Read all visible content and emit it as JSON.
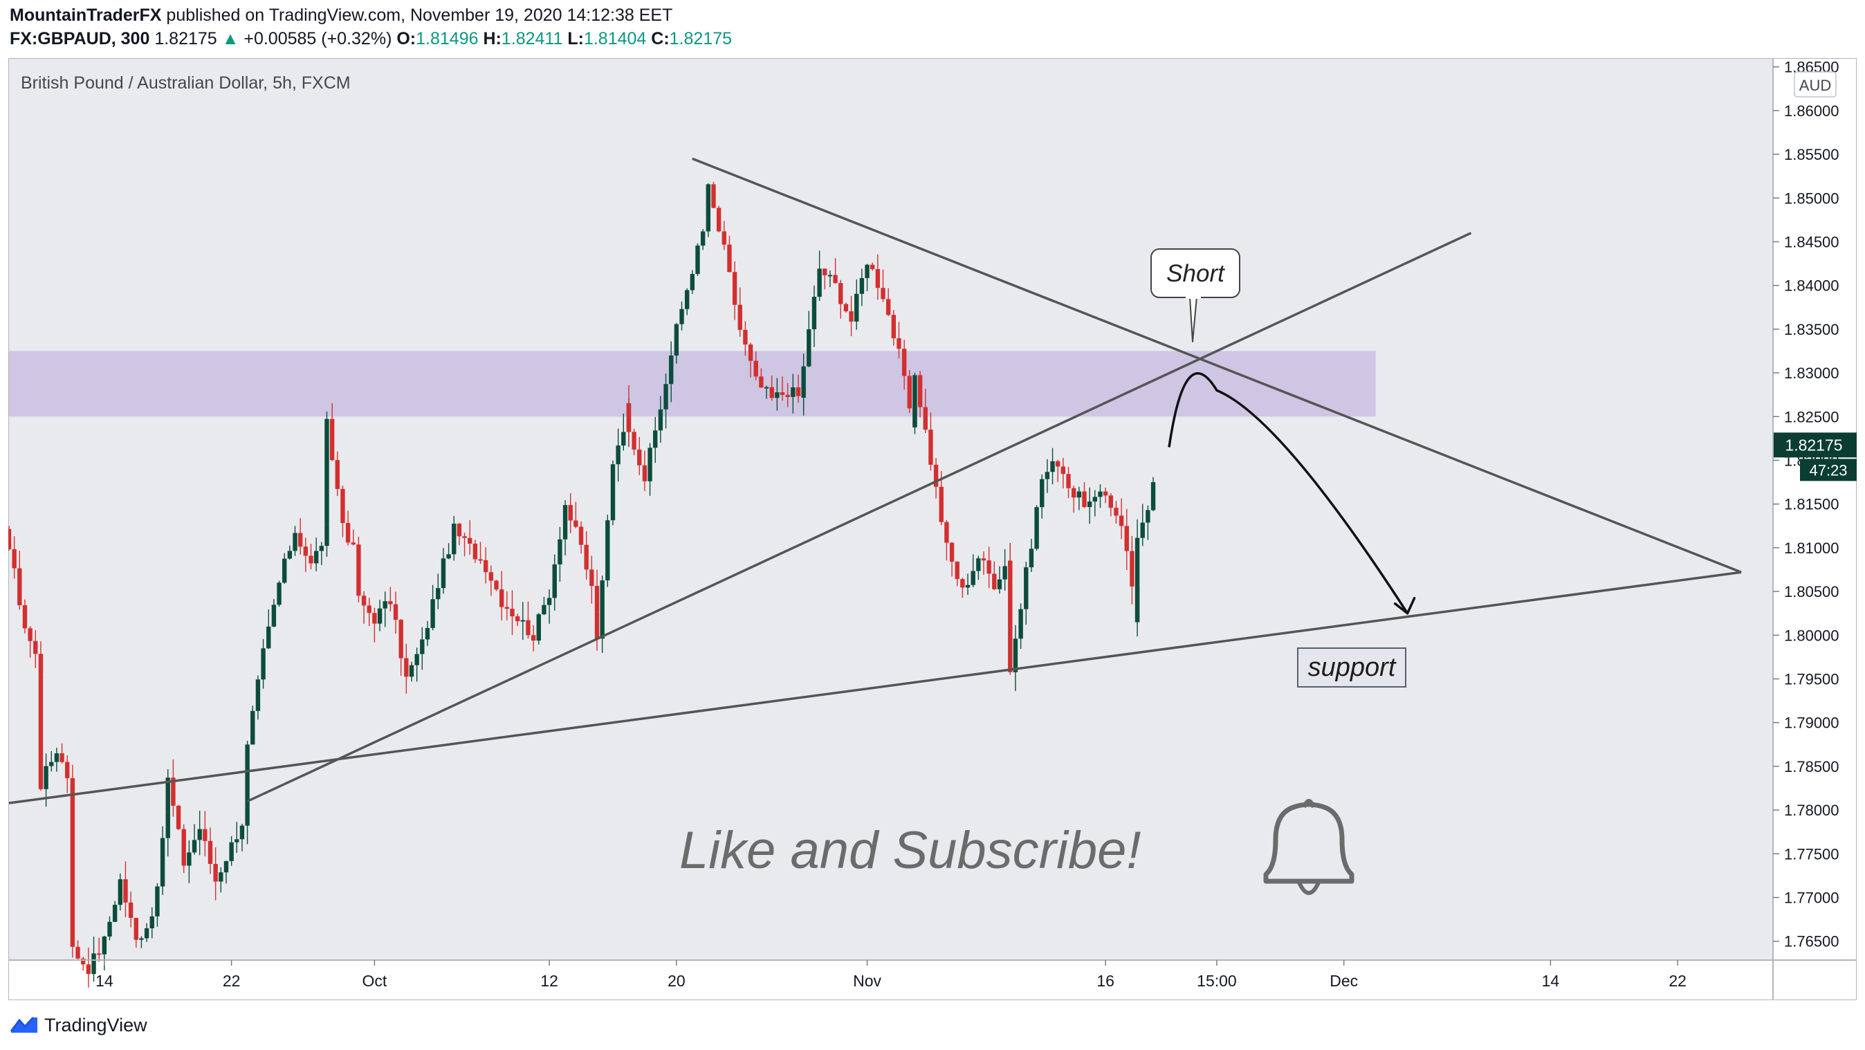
{
  "header": {
    "author": "MountainTraderFX",
    "published": "published on TradingView.com, November 19, 2020 14:12:38 EET"
  },
  "ohlc": {
    "symbol": "FX:GBPAUD, 300",
    "last": "1.82175",
    "change": "+0.00585 (+0.32%)",
    "o_label": "O:",
    "o": "1.81496",
    "h_label": "H:",
    "h": "1.82411",
    "l_label": "L:",
    "l": "1.81404",
    "c_label": "C:",
    "c": "1.82175",
    "up_color": "#089981"
  },
  "chart_data": {
    "type": "candlestick",
    "title": "British Pound / Australian Dollar, 5h, FXCM",
    "currency": "AUD",
    "ylim": [
      1.763,
      1.866
    ],
    "y_ticks": [
      "1.86500",
      "1.86000",
      "1.85500",
      "1.85000",
      "1.84500",
      "1.84000",
      "1.83500",
      "1.83000",
      "1.82500",
      "1.82000",
      "1.81500",
      "1.81000",
      "1.80500",
      "1.80000",
      "1.79500",
      "1.79000",
      "1.78500",
      "1.78000",
      "1.77500",
      "1.77000",
      "1.76500"
    ],
    "x_ticks": [
      {
        "label": "14",
        "x": "2020-09-14"
      },
      {
        "label": "22",
        "x": "2020-09-22"
      },
      {
        "label": "Oct",
        "x": "2020-10-01"
      },
      {
        "label": "12",
        "x": "2020-10-12"
      },
      {
        "label": "20",
        "x": "2020-10-20"
      },
      {
        "label": "Nov",
        "x": "2020-11-01"
      },
      {
        "label": "16",
        "x": "2020-11-16"
      },
      {
        "label": "15:00",
        "x": "2020-11-23"
      },
      {
        "label": "Dec",
        "x": "2020-12-01"
      },
      {
        "label": "14",
        "x": "2020-12-14"
      },
      {
        "label": "22",
        "x": "2020-12-22"
      }
    ],
    "last_price": "1.82175",
    "countdown": "47:23",
    "price_line_color": "#0b3d32",
    "up_color": "#0b4d3d",
    "down_color": "#d32f2f",
    "candle_path": [
      {
        "x": "2020-09-07",
        "y": 1.8185
      },
      {
        "x": "2020-09-08",
        "y": 1.81
      },
      {
        "x": "2020-09-09",
        "y": 1.801
      },
      {
        "x": "2020-09-10",
        "y": 1.796
      },
      {
        "x": "2020-09-10",
        "y": 1.783
      },
      {
        "x": "2020-09-11",
        "y": 1.787
      },
      {
        "x": "2020-09-12",
        "y": 1.7825
      },
      {
        "x": "2020-09-12",
        "y": 1.764
      },
      {
        "x": "2020-09-13",
        "y": 1.762
      },
      {
        "x": "2020-09-14",
        "y": 1.765
      },
      {
        "x": "2020-09-15",
        "y": 1.772
      },
      {
        "x": "2020-09-16",
        "y": 1.765
      },
      {
        "x": "2020-09-17",
        "y": 1.768
      },
      {
        "x": "2020-09-18",
        "y": 1.78
      },
      {
        "x": "2020-09-18",
        "y": 1.7835
      },
      {
        "x": "2020-09-19",
        "y": 1.774
      },
      {
        "x": "2020-09-20",
        "y": 1.778
      },
      {
        "x": "2020-09-21",
        "y": 1.772
      },
      {
        "x": "2020-09-22",
        "y": 1.776
      },
      {
        "x": "2020-09-23",
        "y": 1.78
      },
      {
        "x": "2020-09-23",
        "y": 1.787
      },
      {
        "x": "2020-09-24",
        "y": 1.798
      },
      {
        "x": "2020-09-25",
        "y": 1.806
      },
      {
        "x": "2020-09-26",
        "y": 1.812
      },
      {
        "x": "2020-09-27",
        "y": 1.808
      },
      {
        "x": "2020-09-28",
        "y": 1.812
      },
      {
        "x": "2020-09-28",
        "y": 1.824
      },
      {
        "x": "2020-09-29",
        "y": 1.813
      },
      {
        "x": "2020-09-30",
        "y": 1.808
      },
      {
        "x": "2020-09-30",
        "y": 1.804
      },
      {
        "x": "2020-10-01",
        "y": 1.802
      },
      {
        "x": "2020-10-02",
        "y": 1.804
      },
      {
        "x": "2020-10-03",
        "y": 1.795
      },
      {
        "x": "2020-10-04",
        "y": 1.799
      },
      {
        "x": "2020-10-05",
        "y": 1.806
      },
      {
        "x": "2020-10-06",
        "y": 1.812
      },
      {
        "x": "2020-10-07",
        "y": 1.81
      },
      {
        "x": "2020-10-08",
        "y": 1.808
      },
      {
        "x": "2020-10-09",
        "y": 1.804
      },
      {
        "x": "2020-10-10",
        "y": 1.802
      },
      {
        "x": "2020-10-11",
        "y": 1.8
      },
      {
        "x": "2020-10-12",
        "y": 1.805
      },
      {
        "x": "2020-10-13",
        "y": 1.815
      },
      {
        "x": "2020-10-14",
        "y": 1.81
      },
      {
        "x": "2020-10-15",
        "y": 1.803
      },
      {
        "x": "2020-10-15",
        "y": 1.799
      },
      {
        "x": "2020-10-16",
        "y": 1.82
      },
      {
        "x": "2020-10-17",
        "y": 1.826
      },
      {
        "x": "2020-10-17",
        "y": 1.824
      },
      {
        "x": "2020-10-18",
        "y": 1.818
      },
      {
        "x": "2020-10-19",
        "y": 1.826
      },
      {
        "x": "2020-10-20",
        "y": 1.835
      },
      {
        "x": "2020-10-21",
        "y": 1.842
      },
      {
        "x": "2020-10-22",
        "y": 1.848
      },
      {
        "x": "2020-10-22",
        "y": 1.851
      },
      {
        "x": "2020-10-23",
        "y": 1.844
      },
      {
        "x": "2020-10-24",
        "y": 1.835
      },
      {
        "x": "2020-10-25",
        "y": 1.829
      },
      {
        "x": "2020-10-26",
        "y": 1.827
      },
      {
        "x": "2020-10-27",
        "y": 1.828
      },
      {
        "x": "2020-10-28",
        "y": 1.827
      },
      {
        "x": "2020-10-28",
        "y": 1.831
      },
      {
        "x": "2020-10-29",
        "y": 1.842
      },
      {
        "x": "2020-10-30",
        "y": 1.84
      },
      {
        "x": "2020-10-31",
        "y": 1.836
      },
      {
        "x": "2020-11-01",
        "y": 1.843
      },
      {
        "x": "2020-11-02",
        "y": 1.839
      },
      {
        "x": "2020-11-03",
        "y": 1.832
      },
      {
        "x": "2020-11-04",
        "y": 1.823
      },
      {
        "x": "2020-11-04",
        "y": 1.83
      },
      {
        "x": "2020-11-05",
        "y": 1.82
      },
      {
        "x": "2020-11-06",
        "y": 1.81
      },
      {
        "x": "2020-11-07",
        "y": 1.805
      },
      {
        "x": "2020-11-08",
        "y": 1.809
      },
      {
        "x": "2020-11-09",
        "y": 1.806
      },
      {
        "x": "2020-11-10",
        "y": 1.809
      },
      {
        "x": "2020-11-10",
        "y": 1.796
      },
      {
        "x": "2020-11-11",
        "y": 1.807
      },
      {
        "x": "2020-11-12",
        "y": 1.818
      },
      {
        "x": "2020-11-13",
        "y": 1.82
      },
      {
        "x": "2020-11-14",
        "y": 1.816
      },
      {
        "x": "2020-11-15",
        "y": 1.815
      },
      {
        "x": "2020-11-16",
        "y": 1.816
      },
      {
        "x": "2020-11-17",
        "y": 1.813
      },
      {
        "x": "2020-11-18",
        "y": 1.802
      },
      {
        "x": "2020-11-18",
        "y": 1.811
      },
      {
        "x": "2020-11-19",
        "y": 1.815
      },
      {
        "x": "2020-11-19",
        "y": 1.8175
      }
    ]
  },
  "annotations": {
    "short_label": "Short",
    "support_label": "support",
    "cta_text": "Like and Subscribe!",
    "bell_icon": "bell-icon",
    "zone_color": "#c9bfe0",
    "line_color": "#555555"
  },
  "footer": {
    "logo_icon": "tradingview-logo-icon",
    "brand": "TradingView",
    "brand_color": "#2962ff"
  }
}
